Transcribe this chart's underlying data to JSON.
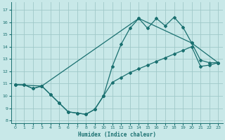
{
  "xlabel": "Humidex (Indice chaleur)",
  "bg_color": "#c8e8e8",
  "grid_color": "#a0c8c8",
  "line_color": "#1a7070",
  "xlim": [
    -0.5,
    23.5
  ],
  "ylim": [
    7.8,
    17.6
  ],
  "yticks": [
    8,
    9,
    10,
    11,
    12,
    13,
    14,
    15,
    16,
    17
  ],
  "xticks": [
    0,
    1,
    2,
    3,
    4,
    5,
    6,
    7,
    8,
    9,
    10,
    11,
    12,
    13,
    14,
    15,
    16,
    17,
    18,
    19,
    20,
    21,
    22,
    23
  ],
  "line1_x": [
    0,
    1,
    2,
    3,
    4,
    5,
    6,
    7,
    8,
    9,
    10,
    11,
    12,
    13,
    14,
    15,
    16,
    17,
    18,
    19,
    20,
    21,
    22,
    23
  ],
  "line1_y": [
    10.9,
    10.9,
    10.6,
    10.8,
    10.1,
    9.4,
    8.7,
    8.6,
    8.5,
    8.9,
    10.0,
    12.4,
    14.2,
    15.5,
    16.3,
    15.5,
    16.3,
    15.7,
    16.4,
    15.6,
    14.3,
    12.9,
    12.7,
    12.7
  ],
  "line2_x": [
    0,
    1,
    2,
    3,
    4,
    5,
    6,
    7,
    8,
    9,
    10,
    11,
    12,
    13,
    14,
    15,
    16,
    17,
    18,
    19,
    20,
    21,
    22,
    23
  ],
  "line2_y": [
    10.9,
    10.9,
    10.6,
    10.8,
    10.1,
    9.4,
    8.7,
    8.6,
    8.5,
    8.9,
    10.0,
    11.1,
    11.5,
    11.9,
    12.2,
    12.5,
    12.8,
    13.1,
    13.4,
    13.7,
    14.0,
    12.4,
    12.5,
    12.7
  ],
  "line3_x": [
    0,
    3,
    14,
    20,
    23
  ],
  "line3_y": [
    10.9,
    10.8,
    16.3,
    14.3,
    12.7
  ],
  "marker_size": 2.0,
  "line_width": 0.9,
  "xlabel_fontsize": 5.5,
  "tick_fontsize": 4.5
}
